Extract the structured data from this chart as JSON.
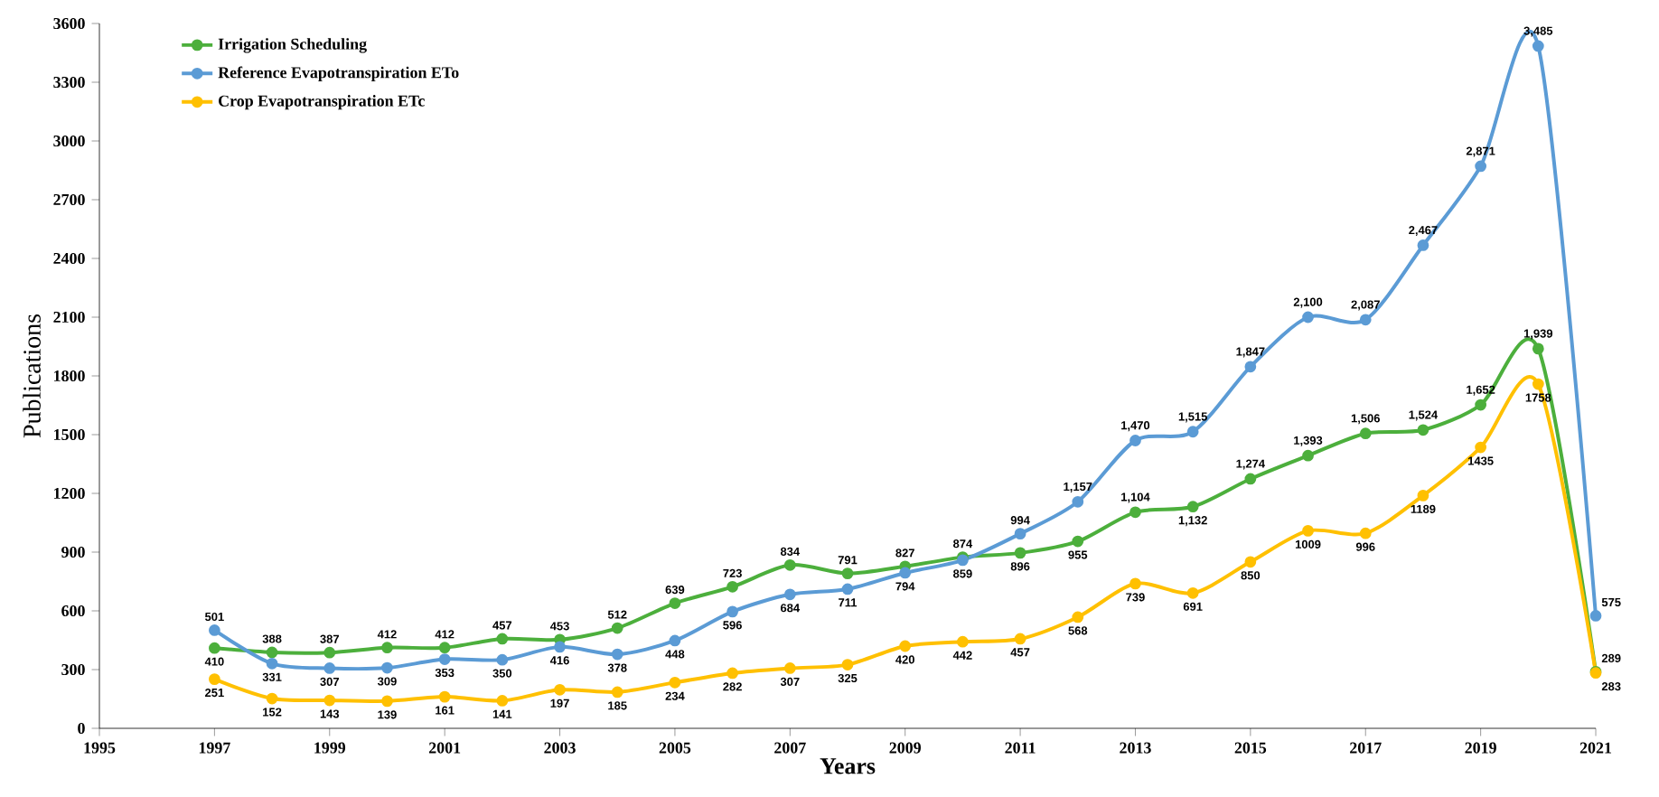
{
  "chart_data": {
    "type": "line",
    "xlabel": "Years",
    "ylabel": "Publications",
    "x": [
      1997,
      1998,
      1999,
      2000,
      2001,
      2002,
      2003,
      2004,
      2005,
      2006,
      2007,
      2008,
      2009,
      2010,
      2011,
      2012,
      2013,
      2014,
      2015,
      2016,
      2017,
      2018,
      2019,
      2020,
      2021
    ],
    "series": [
      {
        "name": "Irrigation Scheduling",
        "color": "#4caf3c",
        "values": [
          410,
          388,
          387,
          412,
          412,
          457,
          453,
          512,
          639,
          723,
          834,
          791,
          827,
          874,
          896,
          955,
          1104,
          1132,
          1274,
          1393,
          1506,
          1524,
          1652,
          1939,
          289
        ],
        "value_labels": [
          "410",
          "388",
          "387",
          "412",
          "412",
          "457",
          "453",
          "512",
          "639",
          "723",
          "834",
          "791",
          "827",
          "874",
          "896",
          "955",
          "1,104",
          "1,132",
          "1,274",
          "1,393",
          "1,506",
          "1,524",
          "1,652",
          "1,939",
          "289"
        ]
      },
      {
        "name": "Reference Evapotranspiration ETo",
        "color": "#5b9bd5",
        "values": [
          501,
          331,
          307,
          309,
          353,
          350,
          416,
          378,
          448,
          596,
          684,
          711,
          794,
          859,
          994,
          1157,
          1470,
          1515,
          1847,
          2100,
          2087,
          2467,
          2871,
          3485,
          575
        ],
        "value_labels": [
          "501",
          "331",
          "307",
          "309",
          "353",
          "350",
          "416",
          "378",
          "448",
          "596",
          "684",
          "711",
          "794",
          "859",
          "994",
          "1,157",
          "1,470",
          "1,515",
          "1,847",
          "2,100",
          "2,087",
          "2,467",
          "2,871",
          "3,485",
          "575"
        ]
      },
      {
        "name": "Crop Evapotranspiration ETc",
        "color": "#ffc000",
        "values": [
          251,
          152,
          143,
          139,
          161,
          141,
          197,
          185,
          234,
          282,
          307,
          325,
          420,
          442,
          457,
          568,
          739,
          691,
          850,
          1009,
          996,
          1189,
          1435,
          1758,
          283
        ],
        "value_labels": [
          "251",
          "152",
          "143",
          "139",
          "161",
          "141",
          "197",
          "185",
          "234",
          "282",
          "307",
          "325",
          "420",
          "442",
          "457",
          "568",
          "739",
          "691",
          "850",
          "1009",
          "996",
          "1189",
          "1435",
          "1758",
          "283"
        ]
      }
    ],
    "xlim": [
      1995,
      2021
    ],
    "xticks": [
      1995,
      1997,
      1999,
      2001,
      2003,
      2005,
      2007,
      2009,
      2011,
      2013,
      2015,
      2017,
      2019,
      2021
    ],
    "ylim": [
      0,
      3600
    ],
    "yticks": [
      0,
      300,
      600,
      900,
      1200,
      1500,
      1800,
      2100,
      2400,
      2700,
      3000,
      3300,
      3600
    ],
    "grid": false,
    "legend": "top left",
    "marker": "circle",
    "line_style": "solid"
  }
}
